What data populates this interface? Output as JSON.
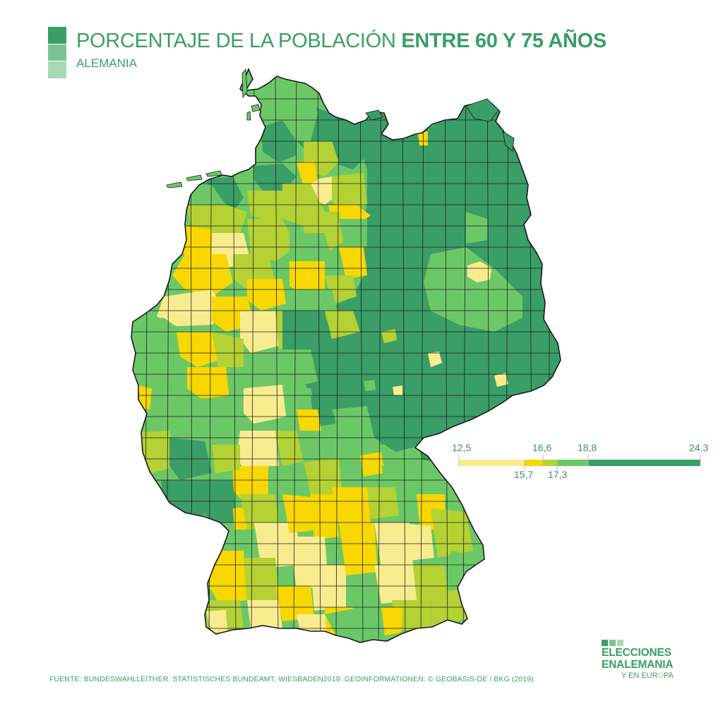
{
  "header": {
    "title_regular": "PORCENTAJE DE LA POBLACIÓN ",
    "title_bold": "ENTRE 60 Y 75 AÑOS",
    "subtitle": "ALEMANIA"
  },
  "colors": {
    "text": "#3a9e67",
    "bin_12_5_15_7": "#f9ec8f",
    "bin_15_7_16_6": "#f8d800",
    "bin_16_6_17_3": "#b4d234",
    "bin_17_3_18_8": "#6cc867",
    "bin_18_8_24_3": "#3a9e67",
    "border": "#1f1f1f"
  },
  "legend": {
    "labels_top": [
      "12,5",
      "16,6",
      "18,8",
      "24,3"
    ],
    "labels_bottom": [
      "15,7",
      "17,3"
    ],
    "breaks": [
      12.5,
      15.7,
      16.6,
      17.3,
      18.8,
      24.3
    ]
  },
  "source": "FUENTE: BUNDESWAHLLEITHER. STATISTISCHES BUNDEAMT, WIESBADEN2019. GEOINFORMATIONEN: ©  GEOBASIS-DE / BKG (2019)",
  "logo": {
    "line1": "ELECCIONES",
    "line2": "ENALEMANIA",
    "line3_a": "Y EN EUR",
    "line3_b": "O",
    "line3_c": "PA"
  }
}
